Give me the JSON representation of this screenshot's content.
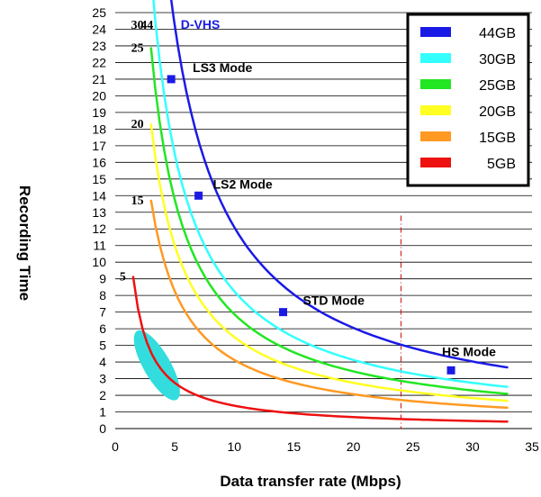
{
  "chart_data": {
    "type": "line",
    "title": "",
    "xlabel": "Data transfer rate (Mbps)",
    "ylabel": "Recording Time",
    "xlim": [
      0,
      35
    ],
    "ylim": [
      0,
      25
    ],
    "x_ticks": [
      "0",
      "5",
      "10",
      "15",
      "20",
      "25",
      "30",
      "35"
    ],
    "y_ticks": [
      "0",
      "1",
      "2",
      "3",
      "4",
      "5",
      "6",
      "7",
      "8",
      "9",
      "10",
      "11",
      "12",
      "13",
      "14",
      "15",
      "16",
      "17",
      "18",
      "19",
      "20",
      "21",
      "22",
      "23",
      "24",
      "25"
    ],
    "grid": "horizontal",
    "legend_position": "top-right",
    "series": [
      {
        "name": "44GB",
        "capacity_gb": 44,
        "capacity_label": "44",
        "color": "#1a1ae6",
        "x_range": [
          3.8,
          33.0
        ]
      },
      {
        "name": "30GB",
        "capacity_gb": 30,
        "capacity_label": "30",
        "color": "#33ffff",
        "x_range": [
          3.0,
          33.0
        ]
      },
      {
        "name": "25GB",
        "capacity_gb": 25,
        "capacity_label": "25",
        "color": "#22e622",
        "x_range": [
          3.0,
          33.0
        ]
      },
      {
        "name": "20GB",
        "capacity_gb": 20,
        "capacity_label": "20",
        "color": "#ffff22",
        "x_range": [
          3.0,
          33.0
        ]
      },
      {
        "name": "15GB",
        "capacity_gb": 15,
        "capacity_label": "15",
        "color": "#ff9922",
        "x_range": [
          3.0,
          33.0
        ]
      },
      {
        "name": "5GB",
        "capacity_gb": 5,
        "capacity_label": "5",
        "color": "#ee1111",
        "x_range": [
          1.5,
          33.0
        ]
      }
    ],
    "markers": [
      {
        "label": "LS3 Mode",
        "x": 4.7,
        "y": 21.0
      },
      {
        "label": "LS2 Mode",
        "x": 7.0,
        "y": 14.0
      },
      {
        "label": "STD Mode",
        "x": 14.1,
        "y": 7.0
      },
      {
        "label": "HS Mode",
        "x": 28.2,
        "y": 3.5
      }
    ],
    "annotations": [
      {
        "text": "D-VHS",
        "x": 5.5,
        "y": 24.3
      }
    ],
    "reference_line": {
      "x": 24,
      "style": "dash-dot",
      "color": "#cc1111"
    },
    "highlight": {
      "shape": "ellipse",
      "center": [
        3.5,
        3.8
      ],
      "color": "#33dddd"
    }
  }
}
